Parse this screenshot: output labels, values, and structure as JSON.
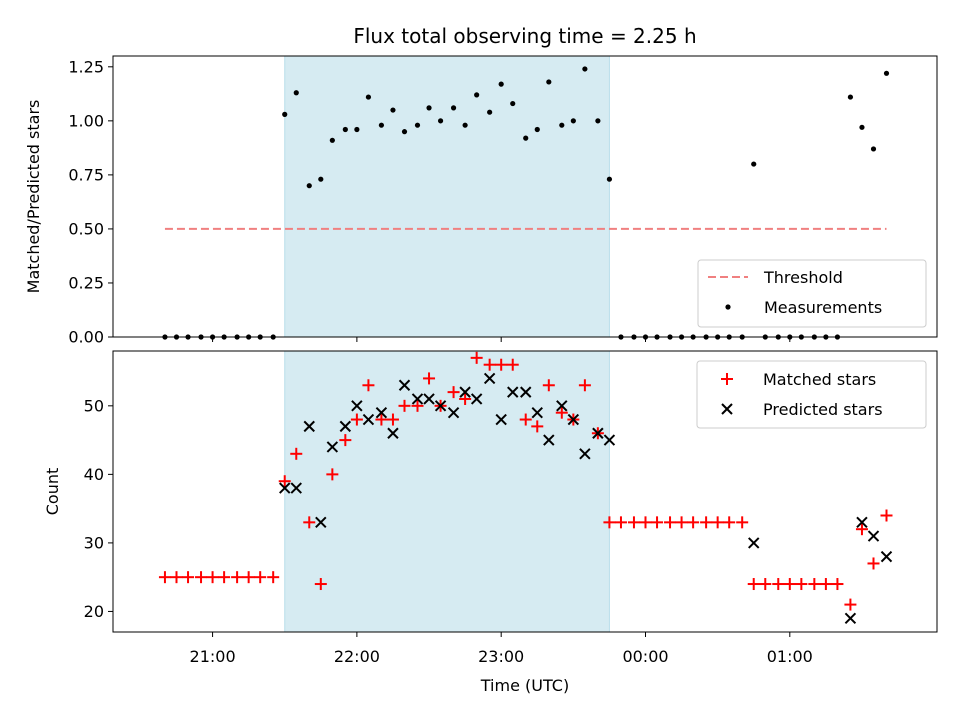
{
  "title": "Flux total observing time = 2.25 h",
  "xlabel": "Time (UTC)",
  "x_ticks": [
    "21:00",
    "22:00",
    "23:00",
    "00:00",
    "01:00"
  ],
  "chart_data": [
    {
      "type": "scatter",
      "ylabel": "Matched/Predicted stars",
      "ylim": [
        0,
        1.3
      ],
      "y_ticks": [
        "0.00",
        "0.25",
        "0.50",
        "0.75",
        "1.00",
        "1.25"
      ],
      "x_unit": "hours after 20:00 UTC",
      "shaded_span": [
        1.5,
        3.75
      ],
      "threshold": {
        "name": "Threshold",
        "value": 0.5,
        "x_range": [
          0.67,
          5.67
        ],
        "color": "#f08080"
      },
      "legend": [
        "Threshold",
        "Measurements"
      ],
      "legend_position": "lower-right",
      "series": [
        {
          "name": "Measurements",
          "color": "#000000",
          "x": [
            0.67,
            0.75,
            0.83,
            0.92,
            1.0,
            1.08,
            1.17,
            1.25,
            1.33,
            1.42,
            1.5,
            1.58,
            1.67,
            1.75,
            1.83,
            1.92,
            2.0,
            2.08,
            2.17,
            2.25,
            2.33,
            2.42,
            2.5,
            2.58,
            2.67,
            2.75,
            2.83,
            2.92,
            3.0,
            3.08,
            3.17,
            3.25,
            3.33,
            3.42,
            3.5,
            3.58,
            3.67,
            3.75,
            3.83,
            3.92,
            4.0,
            4.08,
            4.17,
            4.25,
            4.33,
            4.42,
            4.5,
            4.58,
            4.67,
            4.75,
            4.83,
            4.92,
            5.0,
            5.08,
            5.17,
            5.25,
            5.33,
            5.42,
            5.5,
            5.58,
            5.67
          ],
          "values": [
            0,
            0,
            0,
            0,
            0,
            0,
            0,
            0,
            0,
            0,
            1.03,
            1.13,
            0.7,
            0.73,
            0.91,
            0.96,
            0.96,
            1.11,
            0.98,
            1.05,
            0.95,
            0.98,
            1.06,
            1.0,
            1.06,
            0.98,
            1.12,
            1.04,
            1.17,
            1.08,
            0.92,
            0.96,
            1.18,
            0.98,
            1.0,
            1.24,
            1.0,
            0.73,
            0,
            0,
            0,
            0,
            0,
            0,
            0,
            0,
            0,
            0,
            0,
            0.8,
            0,
            0,
            0,
            0,
            0,
            0,
            0,
            1.11,
            0.97,
            0.87,
            1.22
          ]
        }
      ]
    },
    {
      "type": "scatter",
      "ylabel": "Count",
      "ylim": [
        17,
        58
      ],
      "y_ticks": [
        "20",
        "30",
        "40",
        "50"
      ],
      "legend": [
        "Matched stars",
        "Predicted stars"
      ],
      "legend_position": "top-right",
      "series": [
        {
          "name": "Matched stars",
          "marker": "+",
          "color": "#ff0000",
          "x": [
            0.67,
            0.75,
            0.83,
            0.92,
            1.0,
            1.08,
            1.17,
            1.25,
            1.33,
            1.42,
            1.5,
            1.58,
            1.67,
            1.75,
            1.83,
            1.92,
            2.0,
            2.08,
            2.17,
            2.25,
            2.33,
            2.42,
            2.5,
            2.58,
            2.67,
            2.75,
            2.83,
            2.92,
            3.0,
            3.08,
            3.17,
            3.25,
            3.33,
            3.42,
            3.5,
            3.58,
            3.67,
            3.75,
            3.83,
            3.92,
            4.0,
            4.08,
            4.17,
            4.25,
            4.33,
            4.42,
            4.5,
            4.58,
            4.67,
            4.75,
            4.83,
            4.92,
            5.0,
            5.08,
            5.17,
            5.25,
            5.33,
            5.42,
            5.5,
            5.58,
            5.67
          ],
          "values": [
            25,
            25,
            25,
            25,
            25,
            25,
            25,
            25,
            25,
            25,
            39,
            43,
            33,
            24,
            40,
            45,
            48,
            53,
            48,
            48,
            50,
            50,
            54,
            50,
            52,
            51,
            57,
            56,
            56,
            56,
            48,
            47,
            53,
            49,
            48,
            53,
            46,
            33,
            33,
            33,
            33,
            33,
            33,
            33,
            33,
            33,
            33,
            33,
            33,
            24,
            24,
            24,
            24,
            24,
            24,
            24,
            24,
            21,
            32,
            27,
            34
          ]
        },
        {
          "name": "Predicted stars",
          "marker": "x",
          "color": "#000000",
          "x": [
            1.5,
            1.58,
            1.67,
            1.75,
            1.83,
            1.92,
            2.0,
            2.08,
            2.17,
            2.25,
            2.33,
            2.42,
            2.5,
            2.58,
            2.67,
            2.75,
            2.83,
            2.92,
            3.0,
            3.08,
            3.17,
            3.25,
            3.33,
            3.42,
            3.5,
            3.58,
            3.67,
            3.75,
            4.75,
            5.42,
            5.5,
            5.58,
            5.67
          ],
          "values": [
            38,
            38,
            47,
            33,
            44,
            47,
            50,
            48,
            49,
            46,
            53,
            51,
            51,
            50,
            49,
            52,
            51,
            54,
            48,
            52,
            52,
            49,
            45,
            50,
            48,
            43,
            46,
            45,
            30,
            19,
            33,
            31,
            28
          ]
        }
      ]
    }
  ]
}
